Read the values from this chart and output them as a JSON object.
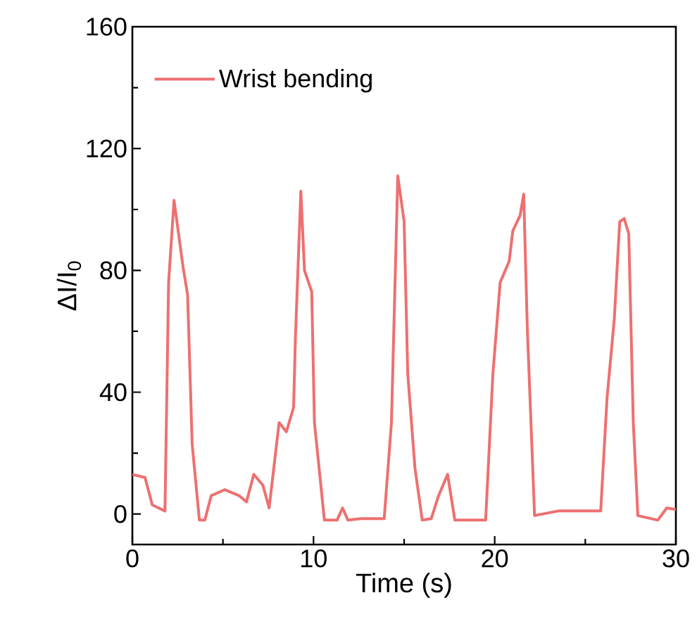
{
  "chart_data": {
    "type": "line",
    "xlabel": "Time (s)",
    "ylabel": "ΔI/I$_{0}$",
    "xlim": [
      0,
      30
    ],
    "ylim": [
      -10,
      160
    ],
    "xticks": [
      0,
      {
        "value": 5,
        "label": null
      },
      10,
      {
        "value": 15,
        "label": null
      },
      20,
      {
        "value": 25,
        "label": null
      },
      30
    ],
    "yticks": [
      0,
      {
        "value": 20,
        "label": null
      },
      40,
      {
        "value": 60,
        "label": null
      },
      80,
      {
        "value": 100,
        "label": null
      },
      120,
      {
        "value": 140,
        "label": null
      },
      160
    ],
    "legend": "top left",
    "grid": false,
    "marker": "none",
    "line_style": "solid",
    "series": [
      {
        "name": "Wrist bending",
        "color": "#ee7070",
        "x": [
          0,
          0.7,
          1.1,
          1.8,
          2.0,
          2.3,
          2.8,
          3.05,
          3.3,
          3.7,
          4.0,
          4.35,
          5.1,
          5.9,
          6.3,
          6.7,
          7.2,
          7.55,
          8.1,
          8.5,
          8.9,
          9.0,
          9.3,
          9.5,
          9.9,
          10.05,
          10.6,
          11.3,
          11.6,
          11.9,
          12.6,
          13.9,
          14.3,
          14.65,
          15.0,
          15.2,
          15.6,
          16.0,
          16.5,
          16.9,
          17.4,
          17.8,
          19.5,
          19.9,
          20.3,
          20.8,
          21.0,
          21.4,
          21.6,
          21.8,
          22.2,
          23.5,
          25.85,
          26.2,
          26.6,
          26.9,
          27.15,
          27.4,
          27.65,
          27.9,
          29.0,
          29.5,
          30
        ],
        "values": [
          13,
          12,
          3,
          1,
          76,
          103,
          81,
          72,
          23,
          -2,
          -2,
          6,
          8,
          6,
          4,
          13,
          9.5,
          2,
          30,
          27,
          35,
          58,
          106,
          80,
          73,
          30,
          -2,
          -2,
          2,
          -2,
          -1.5,
          -1.5,
          30,
          111,
          96,
          46,
          15,
          -2,
          -1.5,
          6,
          13,
          -2,
          -2,
          46,
          76,
          83,
          93,
          98,
          105,
          61,
          -0.5,
          1,
          1,
          38,
          64,
          96,
          97,
          92,
          30,
          -0.5,
          -2,
          2,
          1.5
        ]
      }
    ]
  }
}
